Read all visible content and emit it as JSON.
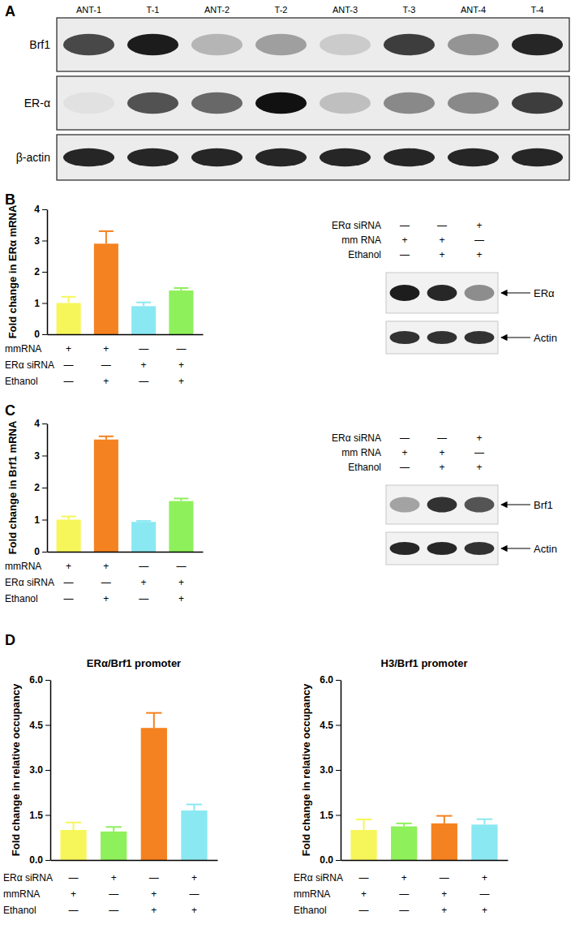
{
  "chart_data": [
    {
      "type": "bar",
      "categories": [
        null,
        null,
        null,
        null
      ],
      "values": [
        1.0,
        2.9,
        0.9,
        1.4
      ],
      "errors": [
        0.2,
        0.4,
        0.12,
        0.08
      ],
      "colors": [
        "#f6f65a",
        "#f58220",
        "#8ae8f2",
        "#8ef05a"
      ],
      "ylabel": "Fold change in ERα mRNA",
      "ylim": [
        0,
        4
      ],
      "yticks": [
        0,
        1,
        2,
        3,
        4
      ],
      "tick_labels": "y",
      "conditions": [
        {
          "label": "mmRNA",
          "marks": [
            "+",
            "+",
            "—",
            "—"
          ]
        },
        {
          "label": "ERα siRNA",
          "marks": [
            "—",
            "—",
            "+",
            "+"
          ]
        },
        {
          "label": "Ethanol",
          "marks": [
            "—",
            "+",
            "—",
            "+"
          ]
        }
      ]
    },
    {
      "type": "bar",
      "categories": [
        null,
        null,
        null,
        null
      ],
      "values": [
        1.0,
        3.5,
        0.93,
        1.58
      ],
      "errors": [
        0.1,
        0.1,
        0.03,
        0.08
      ],
      "colors": [
        "#f6f65a",
        "#f58220",
        "#8ae8f2",
        "#8ef05a"
      ],
      "ylabel": "Fold change in Brf1 mRNA",
      "ylim": [
        0,
        4
      ],
      "yticks": [
        0,
        1,
        2,
        3,
        4
      ],
      "tick_labels": "y",
      "conditions": [
        {
          "label": "mmRNA",
          "marks": [
            "+",
            "+",
            "—",
            "—"
          ]
        },
        {
          "label": "ERα siRNA",
          "marks": [
            "—",
            "—",
            "+",
            "+"
          ]
        },
        {
          "label": "Ethanol",
          "marks": [
            "—",
            "+",
            "—",
            "+"
          ]
        }
      ]
    },
    {
      "type": "bar",
      "title": "ERα/Brf1 promoter",
      "categories": [
        null,
        null,
        null,
        null
      ],
      "values": [
        1.0,
        0.95,
        4.4,
        1.65
      ],
      "errors": [
        0.25,
        0.15,
        0.5,
        0.2
      ],
      "colors": [
        "#f6f65a",
        "#8ef05a",
        "#f58220",
        "#8ae8f2"
      ],
      "ylabel": "Fold change in relative occupancy",
      "ylim": [
        0,
        6
      ],
      "yticks": [
        {
          "value": 0,
          "label": "0.0"
        },
        {
          "value": 1.5,
          "label": "1.5"
        },
        {
          "value": 3,
          "label": "3.0"
        },
        {
          "value": 4.5,
          "label": "4.5"
        },
        {
          "value": 6,
          "label": "6.0"
        }
      ],
      "tick_labels": "y",
      "conditions": [
        {
          "label": "ERα siRNA",
          "marks": [
            "—",
            "+",
            "—",
            "+"
          ]
        },
        {
          "label": "mmRNA",
          "marks": [
            "+",
            "—",
            "+",
            "—"
          ]
        },
        {
          "label": "Ethanol",
          "marks": [
            "—",
            "—",
            "+",
            "+"
          ]
        }
      ]
    },
    {
      "type": "bar",
      "title": "H3/Brf1 promoter",
      "categories": [
        null,
        null,
        null,
        null
      ],
      "values": [
        1.0,
        1.12,
        1.22,
        1.18
      ],
      "errors": [
        0.35,
        0.1,
        0.25,
        0.18
      ],
      "colors": [
        "#f6f65a",
        "#8ef05a",
        "#f58220",
        "#8ae8f2"
      ],
      "ylabel": "Fold change in relative occupancy",
      "ylim": [
        0,
        6
      ],
      "yticks": [
        {
          "value": 0,
          "label": "0.0"
        },
        {
          "value": 1.5,
          "label": "1.5"
        },
        {
          "value": 3,
          "label": "3.0"
        },
        {
          "value": 4.5,
          "label": "4.5"
        },
        {
          "value": 6,
          "label": "6.0"
        }
      ],
      "tick_labels": "y",
      "conditions": [
        {
          "label": "ERα siRNA",
          "marks": [
            "—",
            "+",
            "—",
            "+"
          ]
        },
        {
          "label": "mmRNA",
          "marks": [
            "+",
            "—",
            "+",
            "—"
          ]
        },
        {
          "label": "Ethanol",
          "marks": [
            "—",
            "—",
            "+",
            "+"
          ]
        }
      ]
    }
  ],
  "panel_labels": [
    "A",
    "B",
    "C",
    "D"
  ],
  "blots": [
    {
      "lanes": [
        "ANT-1",
        "T-1",
        "ANT-2",
        "T-2",
        "ANT-3",
        "T-3",
        "ANT-4",
        "T-4"
      ],
      "rows": [
        {
          "label": "Brf1",
          "intensity": [
            0.75,
            0.95,
            0.25,
            0.35,
            0.15,
            0.8,
            0.4,
            0.9
          ]
        },
        {
          "label": "ER-α",
          "intensity": [
            0.05,
            0.7,
            0.6,
            1.0,
            0.2,
            0.45,
            0.45,
            0.8
          ]
        },
        {
          "label": "β-actin",
          "intensity": [
            0.9,
            0.9,
            0.9,
            0.9,
            0.9,
            0.9,
            0.9,
            0.9
          ]
        }
      ]
    },
    {
      "conditions": [
        {
          "label": "ERα siRNA",
          "marks": [
            "—",
            "—",
            "+"
          ]
        },
        {
          "label": "mm RNA",
          "marks": [
            "+",
            "+",
            "—"
          ]
        },
        {
          "label": "Ethanol",
          "marks": [
            "—",
            "+",
            "+"
          ]
        }
      ],
      "rows": [
        {
          "label": "ERα",
          "intensity": [
            0.95,
            0.9,
            0.45
          ]
        },
        {
          "label": "Actin",
          "intensity": [
            0.85,
            0.85,
            0.85
          ]
        }
      ]
    },
    {
      "conditions": [
        {
          "label": "ERα siRNA",
          "marks": [
            "—",
            "—",
            "+"
          ]
        },
        {
          "label": "mm RNA",
          "marks": [
            "+",
            "+",
            "—"
          ]
        },
        {
          "label": "Ethanol",
          "marks": [
            "—",
            "+",
            "+"
          ]
        }
      ],
      "rows": [
        {
          "label": "Brf1",
          "intensity": [
            0.35,
            0.85,
            0.7
          ]
        },
        {
          "label": "Actin",
          "intensity": [
            0.9,
            0.9,
            0.85
          ]
        }
      ]
    }
  ]
}
